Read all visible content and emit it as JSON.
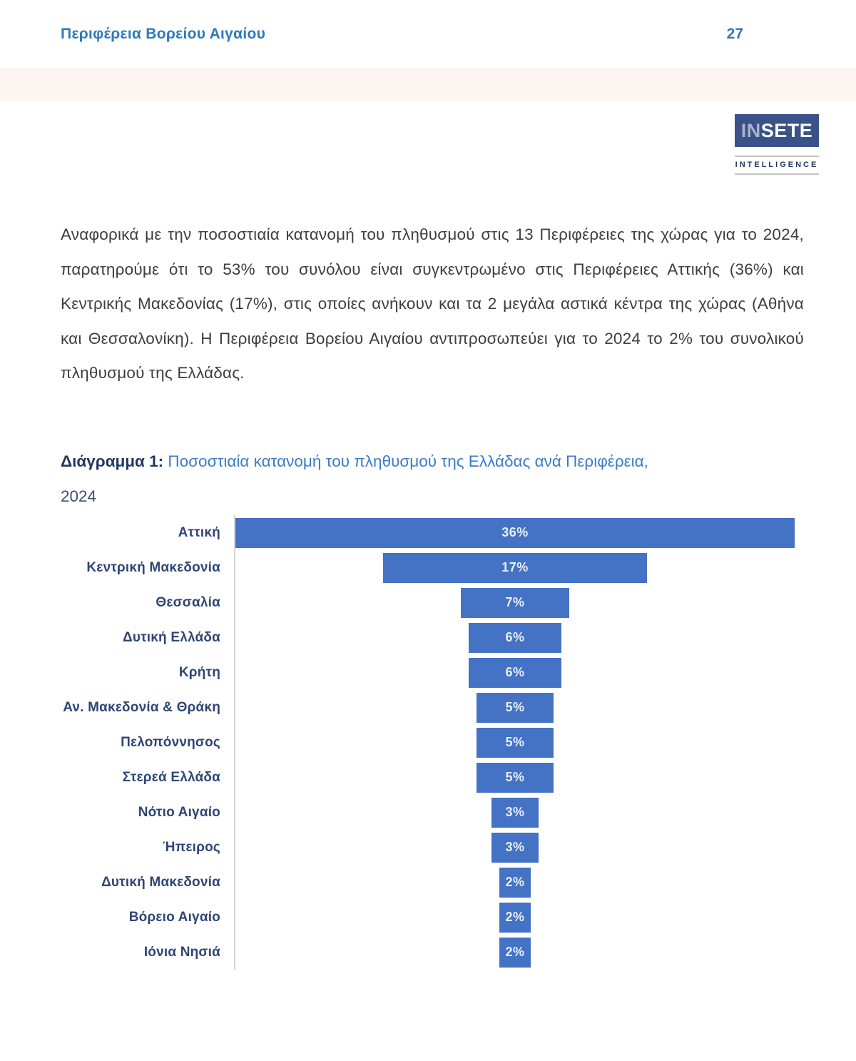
{
  "header": {
    "title": "Περιφέρεια Βορείου Αιγαίου",
    "page_number": "27"
  },
  "logo": {
    "name_part_muted": "IN",
    "name_part_bold": "SETE",
    "tagline": "INTELLIGENCE"
  },
  "article": {
    "paragraph": "Αναφορικά με την ποσοστιαία κατανομή του πληθυσμού στις 13 Περιφέρειες της χώρας για το 2024, παρατηρούμε ότι το 53% του συνόλου είναι συγκεντρωμένο στις Περιφέρειες Αττικής (36%) και Κεντρικής Μακεδονίας (17%), στις οποίες ανήκουν και τα 2 μεγάλα αστικά κέντρα της χώρας (Αθήνα και Θεσσαλονίκη). Η Περιφέρεια Βορείου Αιγαίου αντιπροσωπεύει για το 2024 το 2% του συνολικού πληθυσμού της Ελλάδας."
  },
  "figure": {
    "caption_prefix": "Διάγραμμα 1:",
    "caption_text": " Ποσοστιαία κατανομή του πληθυσμού της Ελλάδας ανά Περιφέρεια,",
    "caption_year": "2024"
  },
  "chart_data": {
    "type": "bar",
    "variant": "horizontal-centered-funnel",
    "title": "Ποσοστιαία κατανομή του πληθυσμού της Ελλάδας ανά Περιφέρεια, 2024",
    "categories": [
      "Αττική",
      "Κεντρική Μακεδονία",
      "Θεσσαλία",
      "Δυτική Ελλάδα",
      "Κρήτη",
      "Αν. Μακεδονία & Θράκη",
      "Πελοπόννησος",
      "Στερεά Ελλάδα",
      "Νότιο Αιγαίο",
      "Ήπειρος",
      "Δυτική Μακεδονία",
      "Βόρειο Αιγαίο",
      "Ιόνια Νησιά"
    ],
    "values": [
      36,
      17,
      7,
      6,
      6,
      5,
      5,
      5,
      3,
      3,
      2,
      2,
      2
    ],
    "unit": "%",
    "axis_max": 36,
    "xlabel": "",
    "ylabel": "",
    "legend": "none",
    "grid": false,
    "value_labels": "inside-center"
  },
  "colors": {
    "header_blue": "#2d7abf",
    "band_cream": "#fcf5f1",
    "logo_navy": "#3a5289",
    "logo_muted_text": "#a9b2c6",
    "caption_navy": "#203864",
    "caption_blue": "#3c7cc8",
    "caption_year_slate": "#3f4e73",
    "bar_blue": "#4472c4",
    "category_label_navy": "#2f4576",
    "bar_value_text": "#e8eff9",
    "axis_line": "#d5d5d5",
    "body_text": "#3e3e3e"
  }
}
